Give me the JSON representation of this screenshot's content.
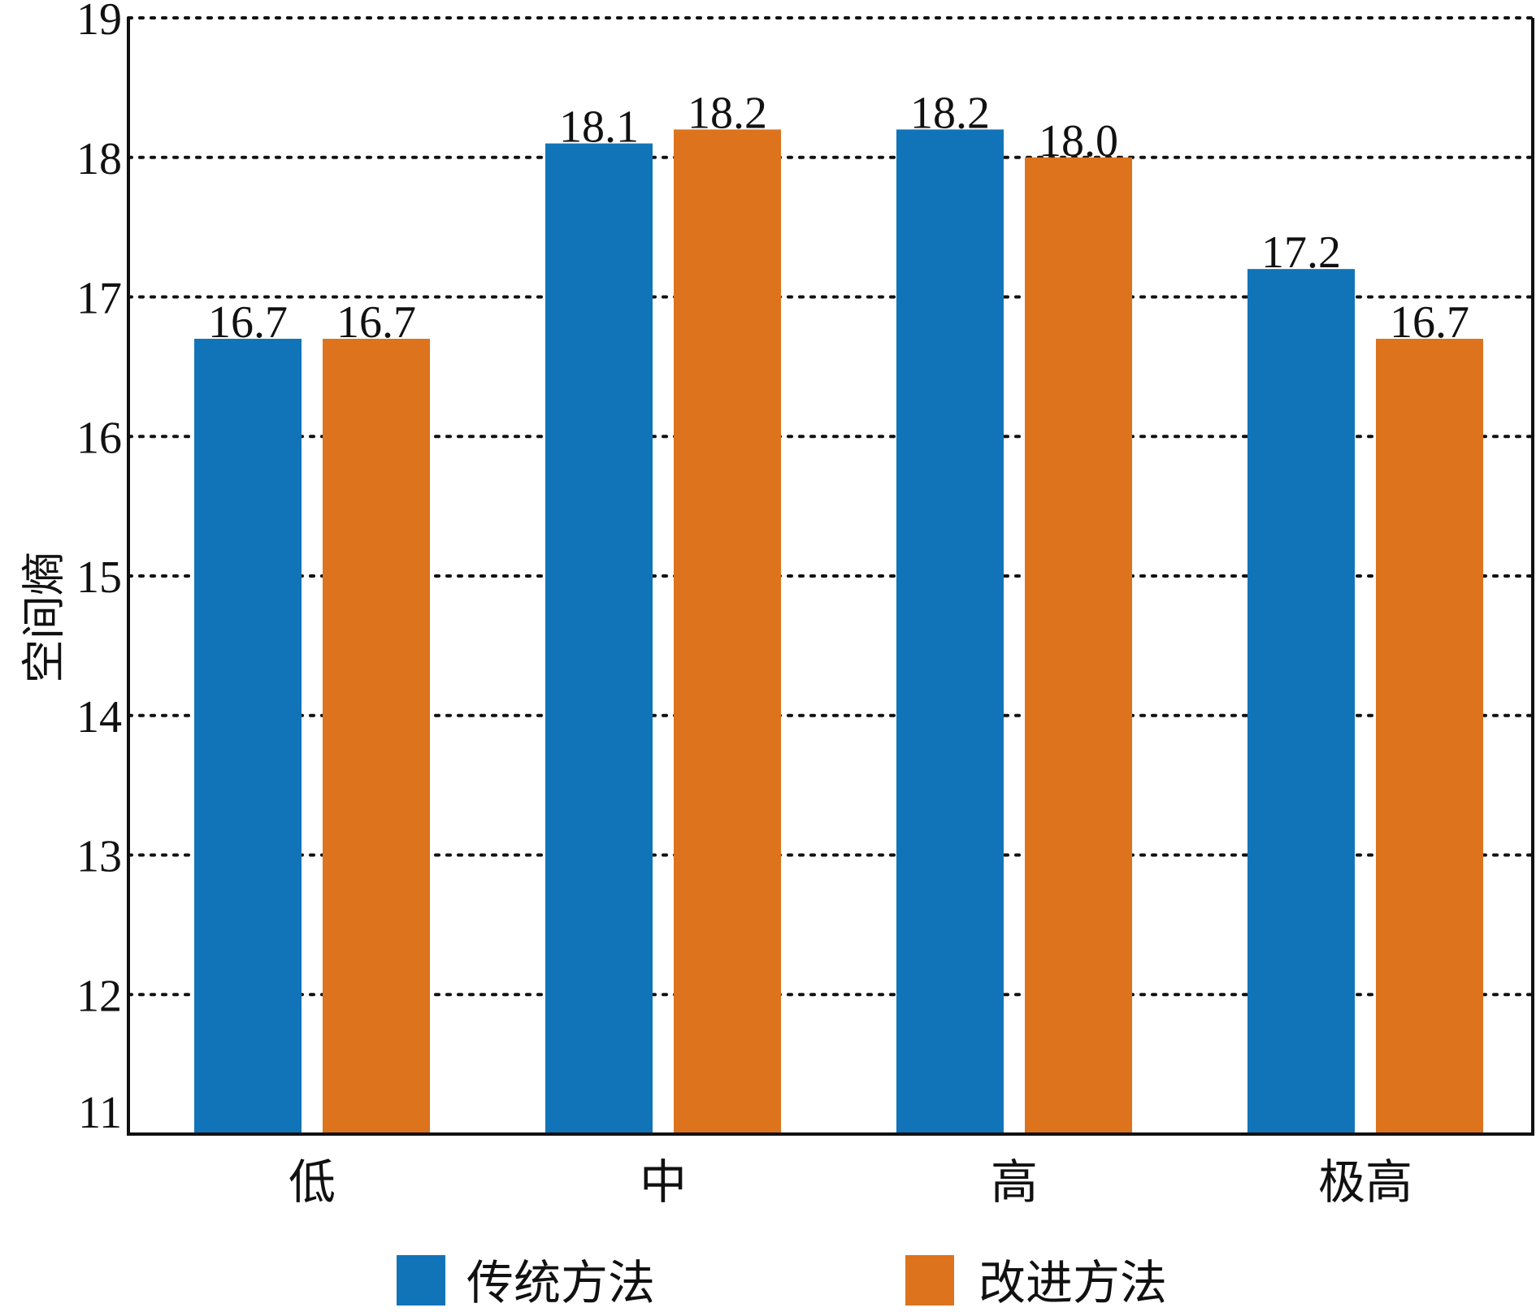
{
  "chart_data": {
    "type": "bar",
    "categories": [
      "低",
      "中",
      "高",
      "极高"
    ],
    "series": [
      {
        "name": "传统方法",
        "values": [
          16.7,
          18.1,
          18.2,
          17.2
        ],
        "labels": [
          "16.7",
          "18.1",
          "18.2",
          "17.2"
        ],
        "color": "#1274b8"
      },
      {
        "name": "改进方法",
        "values": [
          16.7,
          18.2,
          18.0,
          16.7
        ],
        "labels": [
          "16.7",
          "18.2",
          "18.0",
          "16.7"
        ],
        "color": "#dd731d"
      }
    ],
    "title": "",
    "xlabel": "",
    "ylabel": "空间熵",
    "ylim": [
      11,
      19
    ],
    "yticks": [
      11,
      12,
      13,
      14,
      15,
      16,
      17,
      18,
      19
    ],
    "grid": "horizontal dotted",
    "legend": "bottom"
  }
}
